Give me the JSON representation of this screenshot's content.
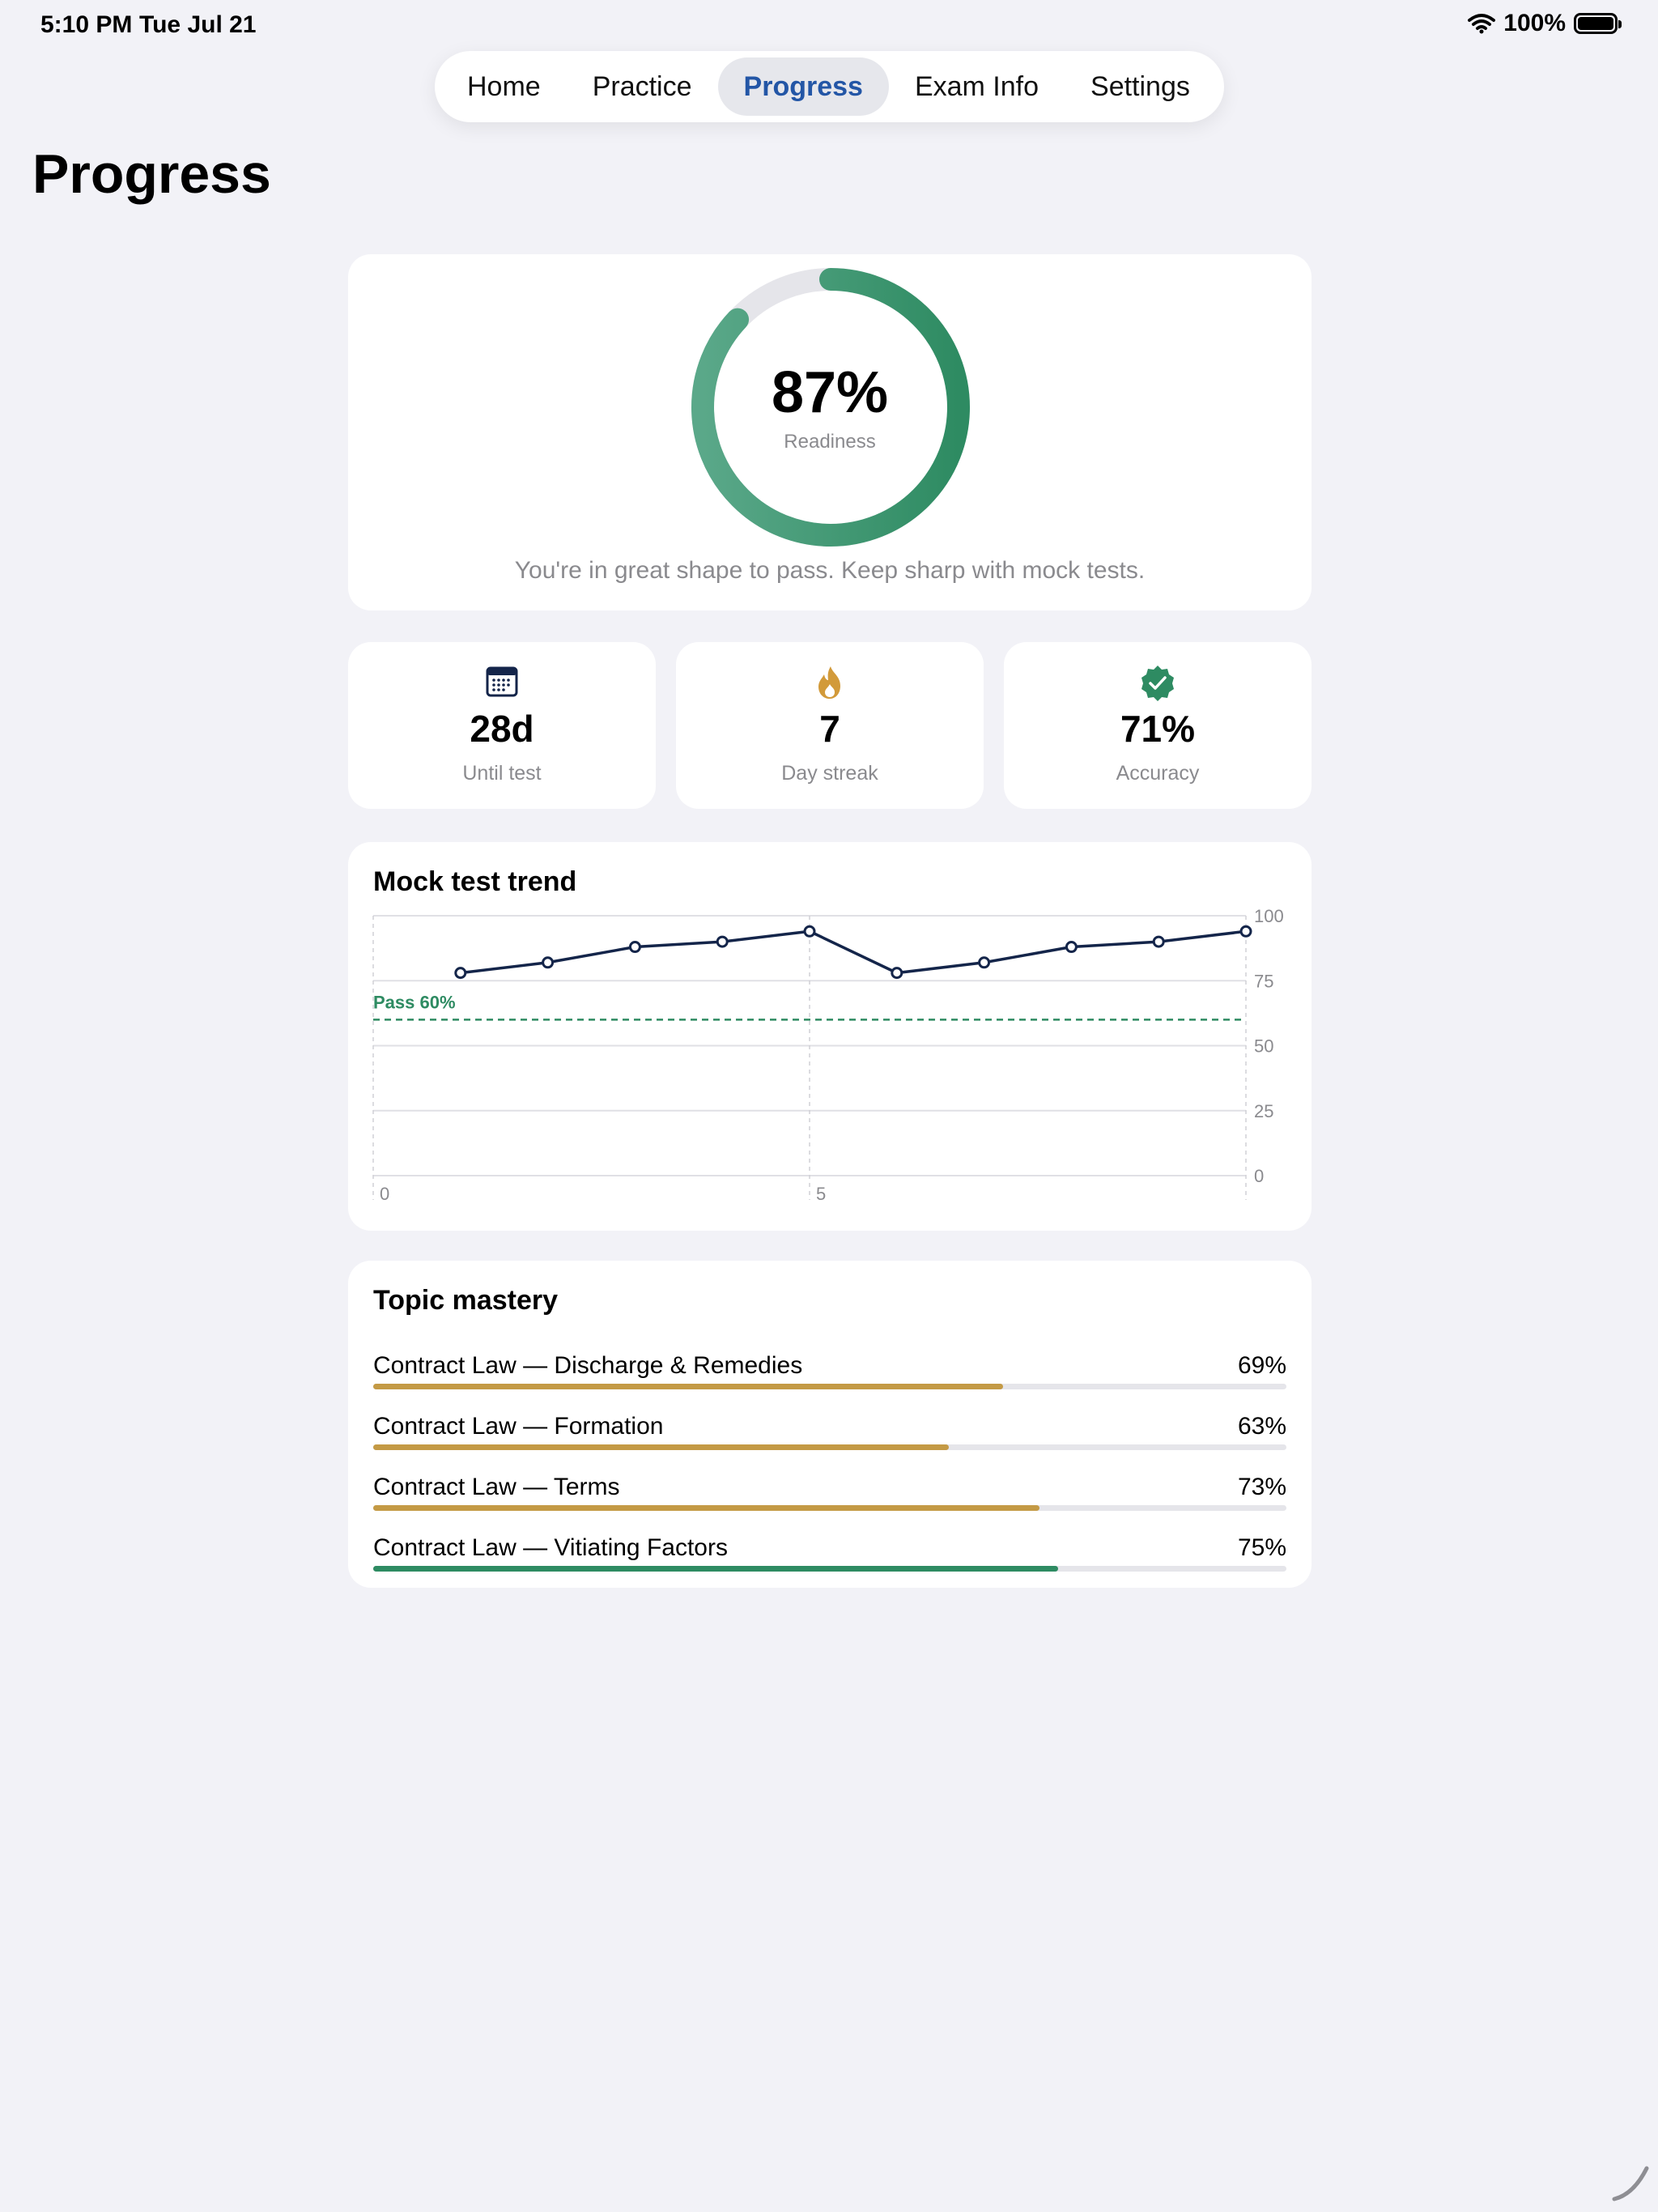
{
  "status": {
    "time": "5:10 PM",
    "date": "Tue Jul 21",
    "battery": "100%"
  },
  "tabs": [
    {
      "label": "Home",
      "active": false
    },
    {
      "label": "Practice",
      "active": false
    },
    {
      "label": "Progress",
      "active": true
    },
    {
      "label": "Exam Info",
      "active": false
    },
    {
      "label": "Settings",
      "active": false
    }
  ],
  "page": {
    "title": "Progress"
  },
  "readiness": {
    "value_text": "87%",
    "value": 0.87,
    "label": "Readiness",
    "message": "You're in great shape to pass. Keep sharp with mock tests."
  },
  "stats": [
    {
      "icon": "calendar-icon",
      "value": "28d",
      "label": "Until test"
    },
    {
      "icon": "flame-icon",
      "value": "7",
      "label": "Day streak"
    },
    {
      "icon": "verified-badge-icon",
      "value": "71%",
      "label": "Accuracy"
    }
  ],
  "trend": {
    "title": "Mock test trend",
    "pass_label": "Pass 60%"
  },
  "chart_data": {
    "type": "line",
    "title": "Mock test trend",
    "x": [
      1,
      2,
      3,
      4,
      5,
      6,
      7,
      8,
      9,
      10
    ],
    "series": [
      {
        "values": [
          78,
          82,
          88,
          90,
          94,
          78,
          82,
          88,
          90,
          94
        ]
      }
    ],
    "xlim": [
      0,
      10
    ],
    "ylim": [
      0,
      100
    ],
    "yticks": [
      100,
      75,
      50,
      25,
      0
    ],
    "xticks": [
      0,
      5
    ],
    "reference_line": {
      "value": 60,
      "label": "Pass 60%"
    },
    "grid": true,
    "colors": {
      "line": "#14254a",
      "pass": "#2e8b62"
    }
  },
  "mastery": {
    "title": "Topic mastery",
    "topics": [
      {
        "name": "Contract Law — Discharge & Remedies",
        "pct_text": "69%",
        "value": 0.69,
        "color": "#c49a45"
      },
      {
        "name": "Contract Law — Formation",
        "pct_text": "63%",
        "value": 0.63,
        "color": "#c49a45"
      },
      {
        "name": "Contract Law — Terms",
        "pct_text": "73%",
        "value": 0.73,
        "color": "#c49a45"
      },
      {
        "name": "Contract Law — Vitiating Factors",
        "pct_text": "75%",
        "value": 0.75,
        "color": "#2e8b62"
      }
    ]
  },
  "colors": {
    "accent_green": "#2e8b62",
    "accent_gold": "#c49a45",
    "tab_active": "#2356a6"
  }
}
